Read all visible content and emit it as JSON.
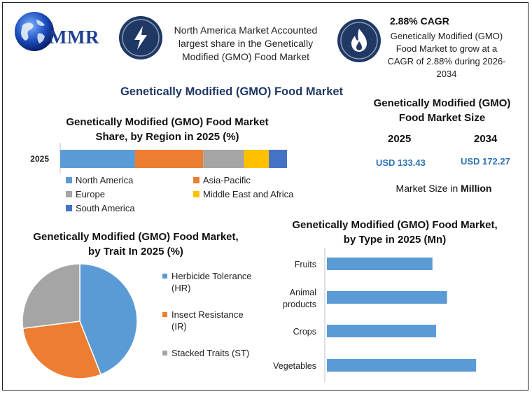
{
  "brand": {
    "name": "MMR"
  },
  "header": {
    "blurb1": "North America Market Accounted largest share in the Genetically Modified (GMO) Food Market",
    "cagr_title": "2.88% CAGR",
    "blurb2": "Genetically Modified (GMO) Food Market to grow at a CAGR of 2.88% during 2026-2034"
  },
  "main_title": "Genetically Modified (GMO) Food Market",
  "market_size": {
    "title": "Genetically Modified (GMO) Food Market Size",
    "year1": "2025",
    "year2": "2034",
    "value1": "USD 133.43",
    "value2": "USD 172.27",
    "unit_prefix": "Market Size in ",
    "unit_bold": "Million"
  },
  "colors": {
    "north_america": "#5b9bd5",
    "asia_pacific": "#ed7d31",
    "europe": "#a5a5a5",
    "mea": "#ffc000",
    "south_america": "#4472c4",
    "type_bar": "#5b9bd5",
    "dark_navy": "#1f3864"
  },
  "icons": {
    "logo": "globe-icon",
    "blurb1": "lightning-icon",
    "blurb2": "flame-icon"
  },
  "chart_data": [
    {
      "type": "bar",
      "orientation": "horizontal-stacked",
      "title": "Genetically Modified (GMO) Food Market Share, by Region in 2025 (%)",
      "categories": [
        "2025"
      ],
      "series": [
        {
          "name": "North America",
          "values": [
            33
          ],
          "color": "#5b9bd5"
        },
        {
          "name": "Asia-Pacific",
          "values": [
            30
          ],
          "color": "#ed7d31"
        },
        {
          "name": "Europe",
          "values": [
            18
          ],
          "color": "#a5a5a5"
        },
        {
          "name": "Middle East and Africa",
          "values": [
            11
          ],
          "color": "#ffc000"
        },
        {
          "name": "South America",
          "values": [
            8
          ],
          "color": "#4472c4"
        }
      ],
      "legend": "bottom",
      "xlim": [
        0,
        100
      ]
    },
    {
      "type": "pie",
      "title": "Genetically Modified (GMO) Food Market, by Trait In 2025 (%)",
      "slices": [
        {
          "name": "Herbicide Tolerance (HR)",
          "value": 44,
          "color": "#5b9bd5"
        },
        {
          "name": "Insect Resistance (IR)",
          "value": 29,
          "color": "#ed7d31"
        },
        {
          "name": "Stacked Traits (ST)",
          "value": 27,
          "color": "#a5a5a5"
        }
      ],
      "legend": "right"
    },
    {
      "type": "bar",
      "orientation": "horizontal",
      "title": "Genetically Modified (GMO) Food Market, by Type in 2025 (Mn)",
      "categories": [
        "Fruits",
        "Animal products",
        "Crops",
        "Vegetables"
      ],
      "category_lines": [
        [
          "Fruits"
        ],
        [
          "Animal",
          "products"
        ],
        [
          "Crops"
        ],
        [
          "Vegetables"
        ]
      ],
      "values": [
        29,
        33,
        30,
        41
      ],
      "xlim": [
        0,
        50
      ],
      "grid": false
    }
  ]
}
